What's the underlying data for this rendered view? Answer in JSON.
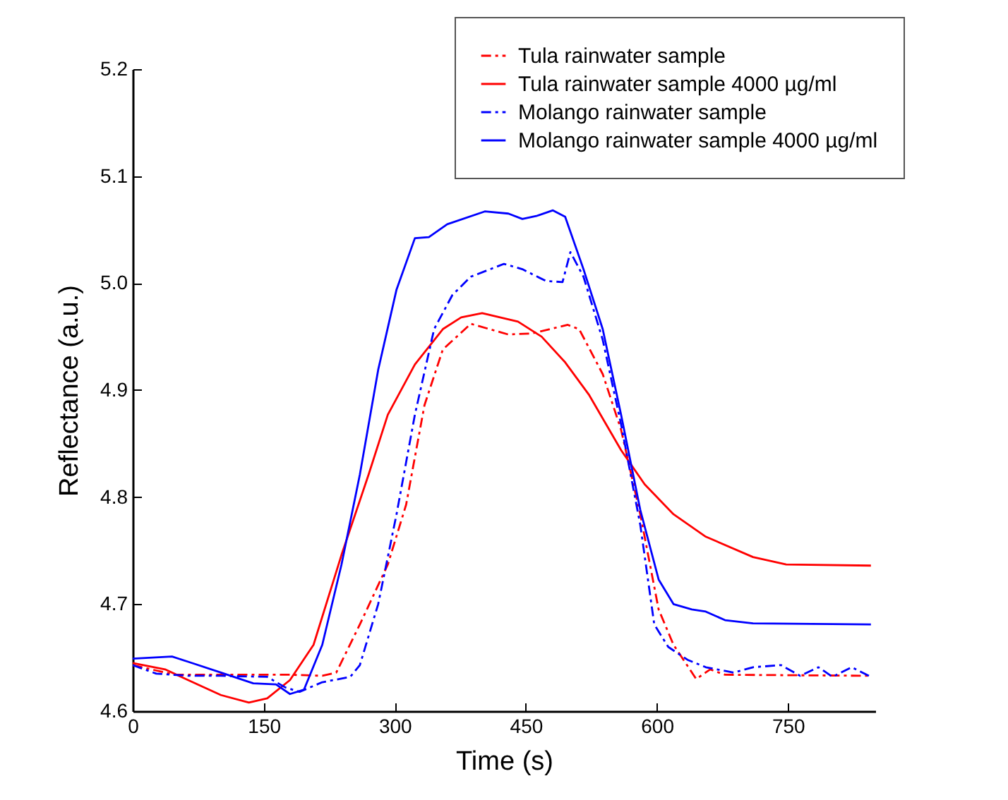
{
  "chart_data": {
    "type": "line",
    "xlabel": "Time (s)",
    "ylabel": "Reflectance (a.u.)",
    "xlim": [
      0,
      850
    ],
    "ylim": [
      4.6,
      5.2
    ],
    "xticks": [
      0,
      150,
      300,
      450,
      600,
      750
    ],
    "yticks": [
      4.6,
      4.7,
      4.8,
      4.9,
      {
        "value": 5,
        "label": "5.0"
      },
      5.1,
      5.2
    ],
    "grid": false,
    "legend": "top right",
    "series": [
      {
        "name": "Tula rainwater sample",
        "color": "#ff0000",
        "line_style": "dashdot",
        "x": [
          0,
          48,
          101,
          180,
          217,
          233,
          260,
          292,
          313,
          334,
          355,
          387,
          430,
          457,
          498,
          511,
          538,
          559,
          581,
          602,
          619,
          645,
          661,
          678,
          845
        ],
        "values": [
          4.643,
          4.634,
          4.634,
          4.634,
          4.633,
          4.636,
          4.681,
          4.737,
          4.793,
          4.886,
          4.938,
          4.962,
          4.952,
          4.953,
          4.961,
          4.957,
          4.915,
          4.863,
          4.784,
          4.695,
          4.662,
          4.63,
          4.639,
          4.634,
          4.633
        ]
      },
      {
        "name": "Tula rainwater sample 4000 µg/ml",
        "color": "#ff0000",
        "line_style": "solid",
        "x": [
          0,
          37,
          74,
          101,
          133,
          154,
          180,
          207,
          239,
          270,
          292,
          323,
          355,
          376,
          400,
          441,
          468,
          495,
          522,
          559,
          586,
          619,
          656,
          710,
          748,
          845
        ],
        "values": [
          4.645,
          4.639,
          4.625,
          4.615,
          4.608,
          4.612,
          4.629,
          4.662,
          4.746,
          4.821,
          4.877,
          4.924,
          4.957,
          4.968,
          4.972,
          4.964,
          4.95,
          4.926,
          4.896,
          4.844,
          4.812,
          4.784,
          4.763,
          4.744,
          4.737,
          4.736
        ]
      },
      {
        "name": "Molango rainwater sample",
        "color": "#0000ff",
        "line_style": "dashdot",
        "x": [
          0,
          27,
          64,
          101,
          154,
          175,
          191,
          217,
          249,
          260,
          281,
          302,
          323,
          345,
          366,
          387,
          425,
          446,
          473,
          492,
          501,
          516,
          538,
          559,
          581,
          597,
          613,
          635,
          656,
          688,
          710,
          742,
          764,
          785,
          801,
          823,
          845
        ],
        "values": [
          4.643,
          4.635,
          4.633,
          4.633,
          4.632,
          4.622,
          4.618,
          4.627,
          4.632,
          4.643,
          4.7,
          4.784,
          4.877,
          4.957,
          4.989,
          5.006,
          5.018,
          5.013,
          5.002,
          5.001,
          5.029,
          5.006,
          4.947,
          4.868,
          4.774,
          4.681,
          4.66,
          4.648,
          4.641,
          4.636,
          4.641,
          4.643,
          4.633,
          4.641,
          4.632,
          4.641,
          4.632
        ]
      },
      {
        "name": "Molango rainwater sample 4000 µg/ml",
        "color": "#0000ff",
        "line_style": "solid",
        "x": [
          0,
          45,
          64,
          101,
          138,
          164,
          180,
          196,
          217,
          239,
          260,
          281,
          302,
          323,
          339,
          360,
          403,
          430,
          446,
          463,
          481,
          495,
          516,
          538,
          559,
          581,
          602,
          619,
          640,
          656,
          678,
          710,
          845
        ],
        "values": [
          4.649,
          4.651,
          4.646,
          4.636,
          4.626,
          4.625,
          4.616,
          4.62,
          4.662,
          4.737,
          4.821,
          4.919,
          4.994,
          5.042,
          5.043,
          5.055,
          5.067,
          5.065,
          5.06,
          5.063,
          5.068,
          5.062,
          5.013,
          4.957,
          4.877,
          4.788,
          4.723,
          4.7,
          4.695,
          4.693,
          4.685,
          4.682,
          4.681
        ]
      }
    ]
  }
}
